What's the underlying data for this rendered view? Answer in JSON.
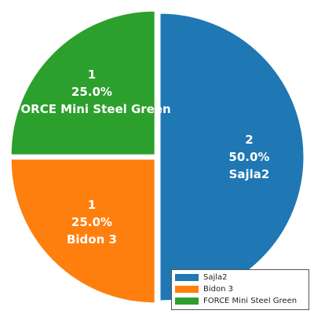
{
  "chart_data": {
    "type": "pie",
    "title": "",
    "slices": [
      {
        "name": "Sajla2",
        "value": 2,
        "percent": "50.0%",
        "count_label": "2",
        "color": "#1f77b4"
      },
      {
        "name": "Bidon 3",
        "value": 1,
        "percent": "25.0%",
        "count_label": "1",
        "color": "#ff7f0e"
      },
      {
        "name": "FORCE Mini Steel Green",
        "value": 1,
        "percent": "25.0%",
        "count_label": "1",
        "color": "#2ca02c"
      }
    ],
    "exploded": true,
    "legend_position": "bottom-right"
  }
}
